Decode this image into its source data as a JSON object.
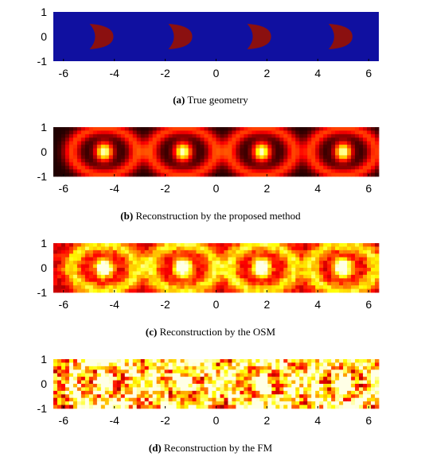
{
  "figure": {
    "panels": [
      {
        "id": "a",
        "kind": "geometry",
        "caption_label": "(a)",
        "caption_text": "True geometry",
        "background_color": "#1010a0",
        "shape_color": "#8b1010",
        "x_ticks": [
          "-6",
          "-4",
          "-2",
          "0",
          "2",
          "4",
          "6"
        ],
        "y_ticks": [
          "1",
          "0",
          "-1"
        ],
        "xlim": [
          -6.4,
          6.4
        ],
        "ylim": [
          -1,
          1
        ],
        "object_centers": [
          -4.6,
          -1.5,
          1.6,
          4.8
        ]
      },
      {
        "id": "b",
        "kind": "reconstruction",
        "caption_label": "(b)",
        "caption_text": "Reconstruction by the proposed method",
        "x_ticks": [
          "-6",
          "-4",
          "-2",
          "0",
          "2",
          "4",
          "6"
        ],
        "y_ticks": [
          "1",
          "0",
          "-1"
        ],
        "xlim": [
          -6.4,
          6.4
        ],
        "ylim": [
          -1,
          1
        ],
        "peak_centers": [
          -4.4,
          -1.3,
          1.8,
          5.0
        ],
        "background_level": 0.05,
        "noise_level": 0.0
      },
      {
        "id": "c",
        "kind": "reconstruction",
        "caption_label": "(c)",
        "caption_text": "Reconstruction by the OSM",
        "x_ticks": [
          "-6",
          "-4",
          "-2",
          "0",
          "2",
          "4",
          "6"
        ],
        "y_ticks": [
          "1",
          "0",
          "-1"
        ],
        "xlim": [
          -6.4,
          6.4
        ],
        "ylim": [
          -1,
          1
        ],
        "peak_centers": [
          -4.4,
          -1.3,
          1.8,
          5.0
        ],
        "background_level": 0.35,
        "noise_level": 0.1
      },
      {
        "id": "d",
        "kind": "reconstruction",
        "caption_label": "(d)",
        "caption_text": "Reconstruction by the FM",
        "x_ticks": [
          "-6",
          "-4",
          "-2",
          "0",
          "2",
          "4",
          "6"
        ],
        "y_ticks": [
          "1",
          "0",
          "-1"
        ],
        "xlim": [
          -6.4,
          6.4
        ],
        "ylim": [
          -1,
          1
        ],
        "peak_centers": [
          -4.4,
          -1.3,
          1.8,
          5.0
        ],
        "background_level": 0.55,
        "noise_level": 0.35
      }
    ]
  }
}
